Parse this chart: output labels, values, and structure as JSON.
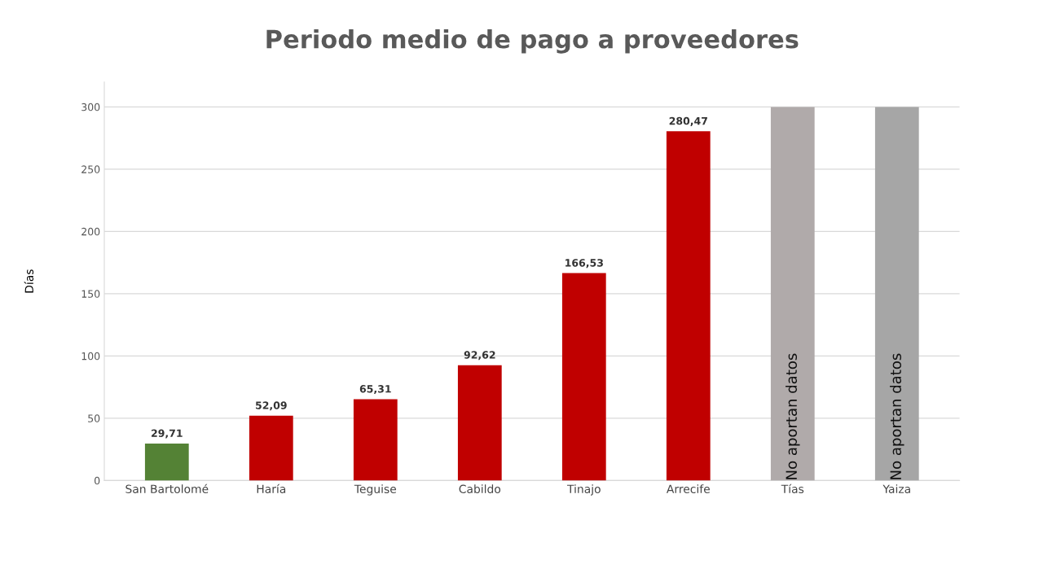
{
  "chart_data": {
    "type": "bar",
    "title": "Periodo medio de pago a proveedores",
    "ylabel": "Días",
    "categories": [
      "San Bartolomé",
      "Haría",
      "Teguise",
      "Cabildo",
      "Tinajo",
      "Arrecife",
      "Tías",
      "Yaiza"
    ],
    "values": [
      29.71,
      52.09,
      65.31,
      92.62,
      166.53,
      280.47,
      300,
      300
    ],
    "colors": [
      "#548235",
      "#c00000",
      "#c00000",
      "#c00000",
      "#c00000",
      "#c00000",
      "#b0aaaa",
      "#a6a6a6"
    ],
    "value_labels": [
      "29,71",
      "52,09",
      "65,31",
      "92,62",
      "166,53",
      "280,47",
      null,
      null
    ],
    "annotations": [
      "No aportan datos",
      "No aportan datos"
    ],
    "ylim": [
      0,
      320
    ],
    "yticks": [
      0,
      50,
      100,
      150,
      200,
      250,
      300
    ],
    "grid": "y"
  }
}
